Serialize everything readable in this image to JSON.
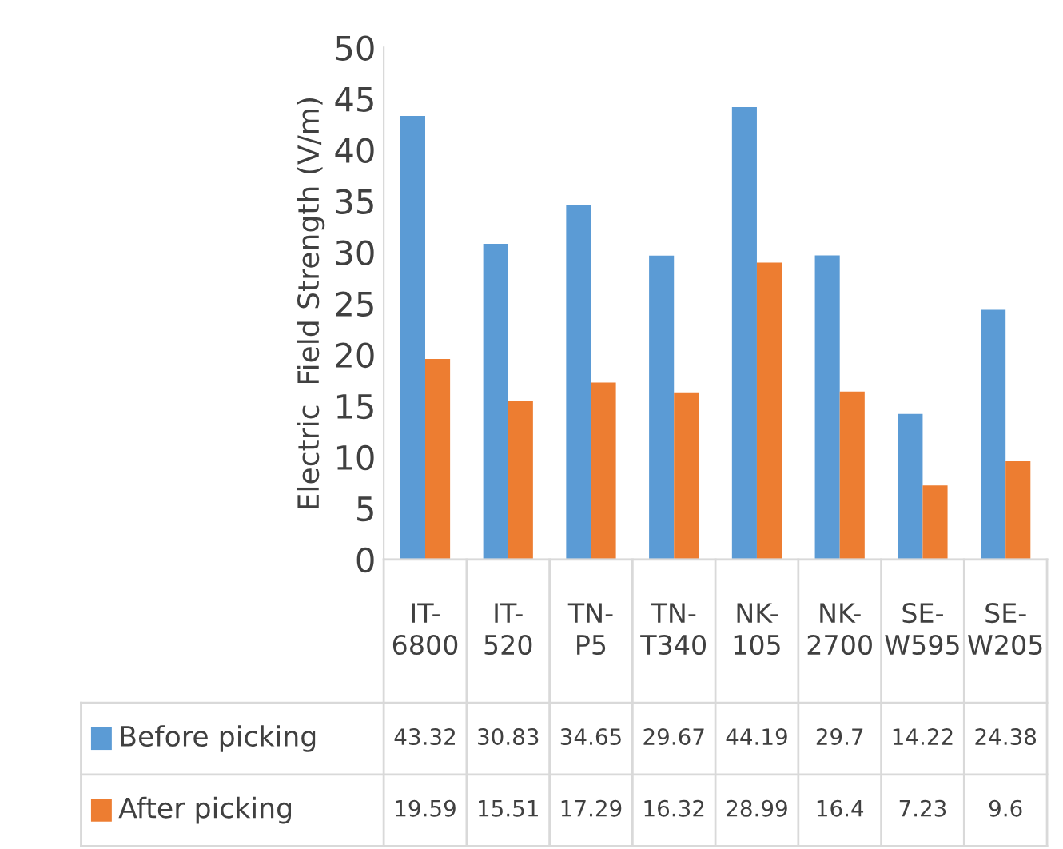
{
  "chart_data": {
    "type": "bar",
    "ylabel": "Electric  Field Strength (V/m)",
    "categories": [
      "IT-6800",
      "IT-520",
      "TN-P5",
      "TN-T340",
      "NK-105",
      "NK-2700",
      "SE-W595",
      "SE-W205"
    ],
    "series": [
      {
        "name": "Before picking",
        "color": "#5b9bd5",
        "values": [
          43.32,
          30.83,
          34.65,
          29.67,
          44.19,
          29.7,
          14.22,
          24.38
        ]
      },
      {
        "name": "After picking",
        "color": "#ed7d31",
        "values": [
          19.59,
          15.51,
          17.29,
          16.32,
          28.99,
          16.4,
          7.23,
          9.6
        ]
      }
    ],
    "ylim": [
      0,
      50
    ],
    "yticks": [
      0,
      5,
      10,
      15,
      20,
      25,
      30,
      35,
      40,
      45,
      50
    ],
    "data_labels": true,
    "grid": false,
    "legend": "bottom"
  }
}
